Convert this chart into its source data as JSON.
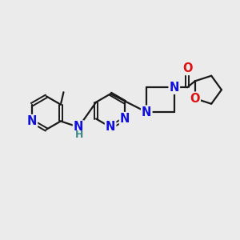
{
  "background_color": "#ebebeb",
  "bond_color": "#1a1a1a",
  "N_color": "#1010dd",
  "O_color": "#dd1010",
  "NH_color": "#3a8a8a",
  "bond_width": 1.6,
  "font_size": 10.5,
  "figsize": [
    3.0,
    3.0
  ],
  "dpi": 100,
  "xlim": [
    0,
    10
  ],
  "ylim": [
    0,
    10
  ]
}
